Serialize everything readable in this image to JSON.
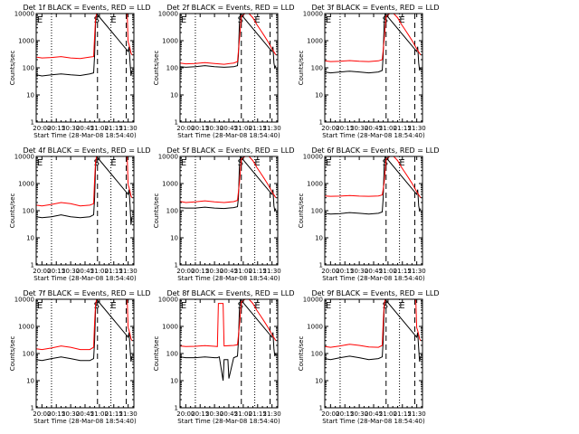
{
  "figure": {
    "x_tick_labels": [
      "20:00",
      "20:15",
      "20:30",
      "20:45",
      "21:00",
      "21:15",
      "21:30"
    ],
    "y_tick_labels": [
      "1",
      "10",
      "100",
      "1000",
      "10000"
    ],
    "xlabel": "Start Time (28-Mar-08 18:54:40)",
    "ylabel": "Counts/sec",
    "markers": {
      "s": "S",
      "e": "E"
    },
    "colors": {
      "events": "#000000",
      "lld": "#ff0000",
      "axes": "#000000"
    }
  },
  "chart_data": [
    {
      "type": "line",
      "title": "Det 1f BLACK = Events, RED = LLD",
      "x_unit": "minutes after 20:00",
      "xlim": [
        -6,
        96
      ],
      "ylim": [
        1,
        10000
      ],
      "yscale": "log",
      "vlines_dotted": [
        10,
        72
      ],
      "vlines_dashed": [
        58,
        88
      ],
      "series": [
        {
          "name": "Events",
          "x": [
            -6,
            0,
            10,
            20,
            30,
            40,
            50,
            54,
            55,
            56,
            57,
            90,
            91,
            92,
            93,
            94
          ],
          "values": [
            55,
            50,
            55,
            60,
            55,
            52,
            60,
            65,
            300,
            4000,
            10000,
            400,
            600,
            150,
            50,
            80
          ]
        },
        {
          "name": "LLD",
          "x": [
            -6,
            0,
            10,
            20,
            30,
            40,
            50,
            54,
            55,
            56,
            57,
            89,
            90,
            91,
            92,
            93,
            94
          ],
          "values": [
            250,
            230,
            240,
            260,
            230,
            220,
            250,
            260,
            1500,
            6000,
            10000,
            10000,
            900,
            700,
            500,
            350,
            300
          ]
        }
      ]
    },
    {
      "type": "line",
      "title": "Det 2f BLACK = Events, RED = LLD",
      "x_unit": "minutes after 20:00",
      "xlim": [
        -6,
        96
      ],
      "ylim": [
        1,
        10000
      ],
      "yscale": "log",
      "vlines_dotted": [
        10,
        72
      ],
      "vlines_dashed": [
        58,
        88
      ],
      "series": [
        {
          "name": "Events",
          "x": [
            -6,
            0,
            10,
            20,
            30,
            40,
            50,
            54,
            55,
            56,
            57,
            90,
            91,
            92,
            93,
            94
          ],
          "values": [
            110,
            105,
            110,
            120,
            110,
            105,
            110,
            120,
            300,
            4000,
            10000,
            400,
            600,
            150,
            100,
            120
          ]
        },
        {
          "name": "LLD",
          "x": [
            -6,
            0,
            10,
            20,
            30,
            40,
            50,
            54,
            56,
            58,
            62,
            66,
            70,
            74,
            78,
            82,
            86,
            90,
            94
          ],
          "values": [
            150,
            140,
            145,
            155,
            145,
            135,
            150,
            170,
            1000,
            8000,
            10000,
            10000,
            7000,
            4000,
            2500,
            1500,
            900,
            500,
            300
          ]
        }
      ]
    },
    {
      "type": "line",
      "title": "Det 3f BLACK = Events, RED = LLD",
      "x_unit": "minutes after 20:00",
      "xlim": [
        -6,
        96
      ],
      "ylim": [
        1,
        10000
      ],
      "yscale": "log",
      "vlines_dotted": [
        10,
        72
      ],
      "vlines_dashed": [
        58,
        88
      ],
      "series": [
        {
          "name": "Events",
          "x": [
            -6,
            0,
            10,
            20,
            30,
            40,
            50,
            54,
            55,
            56,
            57,
            90,
            91,
            92,
            93,
            94
          ],
          "values": [
            70,
            65,
            70,
            75,
            70,
            65,
            70,
            80,
            300,
            4000,
            10000,
            400,
            600,
            150,
            80,
            100
          ]
        },
        {
          "name": "LLD",
          "x": [
            -6,
            0,
            10,
            20,
            30,
            40,
            50,
            54,
            56,
            58,
            62,
            66,
            70,
            74,
            78,
            82,
            86,
            90,
            94
          ],
          "values": [
            180,
            170,
            175,
            185,
            175,
            170,
            180,
            200,
            1000,
            8000,
            10000,
            10000,
            7000,
            4000,
            2500,
            1500,
            900,
            500,
            300
          ]
        }
      ]
    },
    {
      "type": "line",
      "title": "Det 4f BLACK = Events, RED = LLD",
      "x_unit": "minutes after 20:00",
      "xlim": [
        -6,
        96
      ],
      "ylim": [
        1,
        10000
      ],
      "yscale": "log",
      "vlines_dotted": [
        10,
        72
      ],
      "vlines_dashed": [
        58,
        88
      ],
      "series": [
        {
          "name": "Events",
          "x": [
            -6,
            0,
            10,
            20,
            30,
            40,
            50,
            54,
            55,
            56,
            57,
            90,
            91,
            92,
            93,
            94
          ],
          "values": [
            60,
            55,
            60,
            70,
            60,
            55,
            60,
            70,
            300,
            4000,
            10000,
            400,
            600,
            150,
            30,
            60
          ]
        },
        {
          "name": "LLD",
          "x": [
            -6,
            0,
            10,
            20,
            30,
            40,
            50,
            54,
            55,
            56,
            57,
            89,
            90,
            91,
            92,
            93,
            94
          ],
          "values": [
            160,
            150,
            170,
            200,
            180,
            150,
            160,
            180,
            1500,
            6000,
            10000,
            10000,
            900,
            700,
            500,
            350,
            300
          ]
        }
      ]
    },
    {
      "type": "line",
      "title": "Det 5f BLACK = Events, RED = LLD",
      "x_unit": "minutes after 20:00",
      "xlim": [
        -6,
        96
      ],
      "ylim": [
        1,
        10000
      ],
      "yscale": "log",
      "vlines_dotted": [
        10,
        72
      ],
      "vlines_dashed": [
        58,
        88
      ],
      "series": [
        {
          "name": "Events",
          "x": [
            -6,
            0,
            10,
            20,
            30,
            40,
            50,
            54,
            55,
            56,
            57,
            90,
            91,
            92,
            93,
            94
          ],
          "values": [
            130,
            125,
            125,
            135,
            125,
            120,
            130,
            140,
            300,
            4000,
            10000,
            400,
            600,
            150,
            100,
            120
          ]
        },
        {
          "name": "LLD",
          "x": [
            -6,
            0,
            10,
            20,
            30,
            40,
            50,
            54,
            56,
            58,
            62,
            66,
            70,
            74,
            78,
            82,
            86,
            90,
            94
          ],
          "values": [
            220,
            200,
            210,
            230,
            210,
            200,
            215,
            240,
            1000,
            8000,
            10000,
            10000,
            7000,
            4000,
            2500,
            1500,
            900,
            500,
            300
          ]
        }
      ]
    },
    {
      "type": "line",
      "title": "Det 6f BLACK = Events, RED = LLD",
      "x_unit": "minutes after 20:00",
      "xlim": [
        -6,
        96
      ],
      "ylim": [
        1,
        10000
      ],
      "yscale": "log",
      "vlines_dotted": [
        10,
        72
      ],
      "vlines_dashed": [
        58,
        88
      ],
      "series": [
        {
          "name": "Events",
          "x": [
            -6,
            0,
            10,
            20,
            30,
            40,
            50,
            54,
            55,
            56,
            57,
            90,
            91,
            92,
            93,
            94
          ],
          "values": [
            80,
            75,
            78,
            85,
            80,
            75,
            80,
            90,
            300,
            4000,
            10000,
            400,
            600,
            150,
            100,
            120
          ]
        },
        {
          "name": "LLD",
          "x": [
            -6,
            0,
            10,
            20,
            30,
            40,
            50,
            54,
            56,
            58,
            62,
            66,
            70,
            74,
            78,
            82,
            86,
            90,
            94
          ],
          "values": [
            350,
            340,
            345,
            360,
            345,
            340,
            350,
            380,
            1000,
            8000,
            10000,
            10000,
            7000,
            4000,
            2500,
            1500,
            900,
            500,
            300
          ]
        }
      ]
    },
    {
      "type": "line",
      "title": "Det 7f BLACK = Events, RED = LLD",
      "x_unit": "minutes after 20:00",
      "xlim": [
        -6,
        96
      ],
      "ylim": [
        1,
        10000
      ],
      "yscale": "log",
      "vlines_dotted": [
        10,
        72
      ],
      "vlines_dashed": [
        58,
        88
      ],
      "series": [
        {
          "name": "Events",
          "x": [
            -6,
            0,
            10,
            20,
            30,
            40,
            50,
            54,
            55,
            56,
            57,
            90,
            91,
            92,
            93,
            94
          ],
          "values": [
            60,
            55,
            65,
            75,
            65,
            55,
            55,
            65,
            300,
            4000,
            10000,
            400,
            600,
            150,
            50,
            80
          ]
        },
        {
          "name": "LLD",
          "x": [
            -6,
            0,
            10,
            20,
            30,
            40,
            50,
            54,
            55,
            56,
            57,
            89,
            90,
            91,
            92,
            93,
            94
          ],
          "values": [
            150,
            140,
            160,
            190,
            170,
            140,
            140,
            170,
            1500,
            6000,
            10000,
            10000,
            900,
            700,
            500,
            350,
            300
          ]
        }
      ]
    },
    {
      "type": "line",
      "title": "Det 8f BLACK = Events, RED = LLD",
      "x_unit": "minutes after 20:00",
      "xlim": [
        -6,
        96
      ],
      "ylim": [
        1,
        10000
      ],
      "yscale": "log",
      "vlines_dotted": [
        10,
        72
      ],
      "vlines_dashed": [
        58,
        88
      ],
      "series": [
        {
          "name": "Events",
          "x": [
            -6,
            0,
            10,
            20,
            30,
            33,
            35,
            39,
            40,
            44,
            45,
            50,
            54,
            55,
            56,
            57,
            90,
            91,
            92,
            93,
            94
          ],
          "values": [
            75,
            70,
            70,
            75,
            70,
            70,
            75,
            10,
            60,
            60,
            12,
            70,
            80,
            300,
            4000,
            10000,
            400,
            600,
            150,
            80,
            100
          ]
        },
        {
          "name": "LLD",
          "x": [
            -6,
            0,
            10,
            20,
            30,
            33,
            34,
            39,
            40,
            50,
            54,
            56,
            58,
            62,
            66,
            70,
            74,
            78,
            82,
            86,
            90,
            94
          ],
          "values": [
            190,
            180,
            185,
            195,
            185,
            180,
            7000,
            7000,
            190,
            200,
            210,
            1000,
            8000,
            10000,
            10000,
            7000,
            4000,
            2500,
            1500,
            900,
            500,
            300
          ]
        }
      ]
    },
    {
      "type": "line",
      "title": "Det 9f BLACK = Events, RED = LLD",
      "x_unit": "minutes after 20:00",
      "xlim": [
        -6,
        96
      ],
      "ylim": [
        1,
        10000
      ],
      "yscale": "log",
      "vlines_dotted": [
        10,
        72
      ],
      "vlines_dashed": [
        58,
        88
      ],
      "series": [
        {
          "name": "Events",
          "x": [
            -6,
            0,
            10,
            20,
            30,
            40,
            50,
            54,
            55,
            56,
            57,
            90,
            91,
            92,
            93,
            94
          ],
          "values": [
            65,
            60,
            70,
            80,
            70,
            60,
            65,
            75,
            300,
            4000,
            10000,
            400,
            600,
            150,
            50,
            80
          ]
        },
        {
          "name": "LLD",
          "x": [
            -6,
            0,
            10,
            20,
            30,
            40,
            50,
            54,
            55,
            56,
            57,
            89,
            90,
            91,
            92,
            93,
            94
          ],
          "values": [
            180,
            170,
            190,
            220,
            200,
            175,
            170,
            200,
            1500,
            6000,
            10000,
            10000,
            900,
            700,
            500,
            350,
            300
          ]
        }
      ]
    }
  ]
}
